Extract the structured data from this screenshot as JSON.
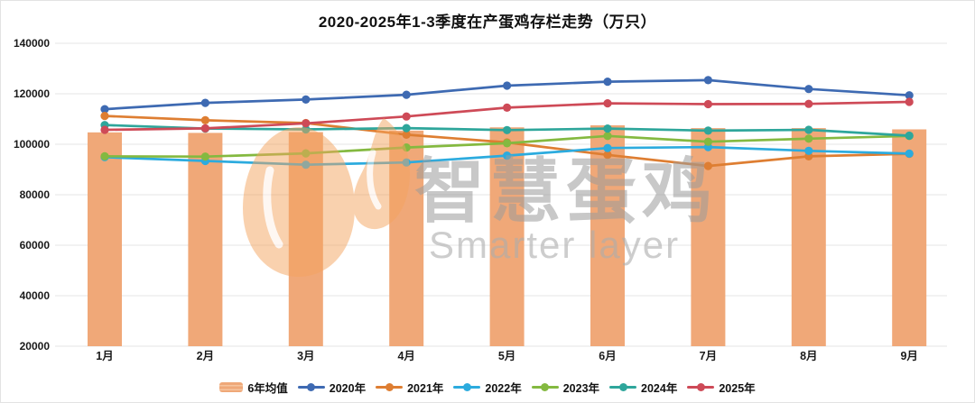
{
  "title": "2020-2025年1-3季度在产蛋鸡存栏走势（万只）",
  "watermark": {
    "cn": "智慧蛋鸡",
    "en": "Smarter layer"
  },
  "colors": {
    "background": "#ffffff",
    "gridline": "#e4e4e4",
    "axis_text": "#1a1a1a",
    "bar": "#f0a878",
    "watermark_text": "#9c9c9c",
    "watermark_logo": "#f4a45f"
  },
  "chart_data": {
    "type": "bar+line",
    "title": "2020-2025年1-3季度在产蛋鸡存栏走势（万只）",
    "xlabel": "",
    "ylabel": "",
    "ylim": [
      20000,
      140000
    ],
    "yticks": [
      20000,
      40000,
      60000,
      80000,
      100000,
      120000,
      140000
    ],
    "grid": true,
    "legend_position": "bottom",
    "categories": [
      "1月",
      "2月",
      "3月",
      "4月",
      "5月",
      "6月",
      "7月",
      "8月",
      "9月"
    ],
    "bar_series": {
      "name": "6年均值",
      "color": "#f0a878",
      "values": [
        104700,
        104500,
        104800,
        105400,
        106700,
        107500,
        106400,
        106400,
        105900
      ]
    },
    "line_series": [
      {
        "name": "2020年",
        "color": "#3e6ab2",
        "values": [
          113900,
          116400,
          117700,
          119600,
          123200,
          124800,
          125400,
          121900,
          119400
        ]
      },
      {
        "name": "2021年",
        "color": "#de7e32",
        "values": [
          111200,
          109500,
          108400,
          103800,
          100700,
          95800,
          91400,
          95200,
          96200
        ]
      },
      {
        "name": "2022年",
        "color": "#2cabde",
        "values": [
          94900,
          93400,
          91900,
          92800,
          95500,
          98500,
          98900,
          97400,
          96300
        ]
      },
      {
        "name": "2023年",
        "color": "#84b940",
        "values": [
          95200,
          95100,
          96400,
          98700,
          100400,
          103300,
          101000,
          102200,
          103300
        ]
      },
      {
        "name": "2024年",
        "color": "#2ea69b",
        "values": [
          107600,
          106200,
          105900,
          106400,
          105600,
          106200,
          105400,
          105700,
          103400
        ]
      },
      {
        "name": "2025年",
        "color": "#ce4a57",
        "values": [
          105700,
          106300,
          108300,
          111000,
          114500,
          116200,
          115900,
          116000,
          116800
        ]
      }
    ]
  },
  "legend": {
    "items": [
      "6年均值",
      "2020年",
      "2021年",
      "2022年",
      "2023年",
      "2024年",
      "2025年"
    ]
  }
}
